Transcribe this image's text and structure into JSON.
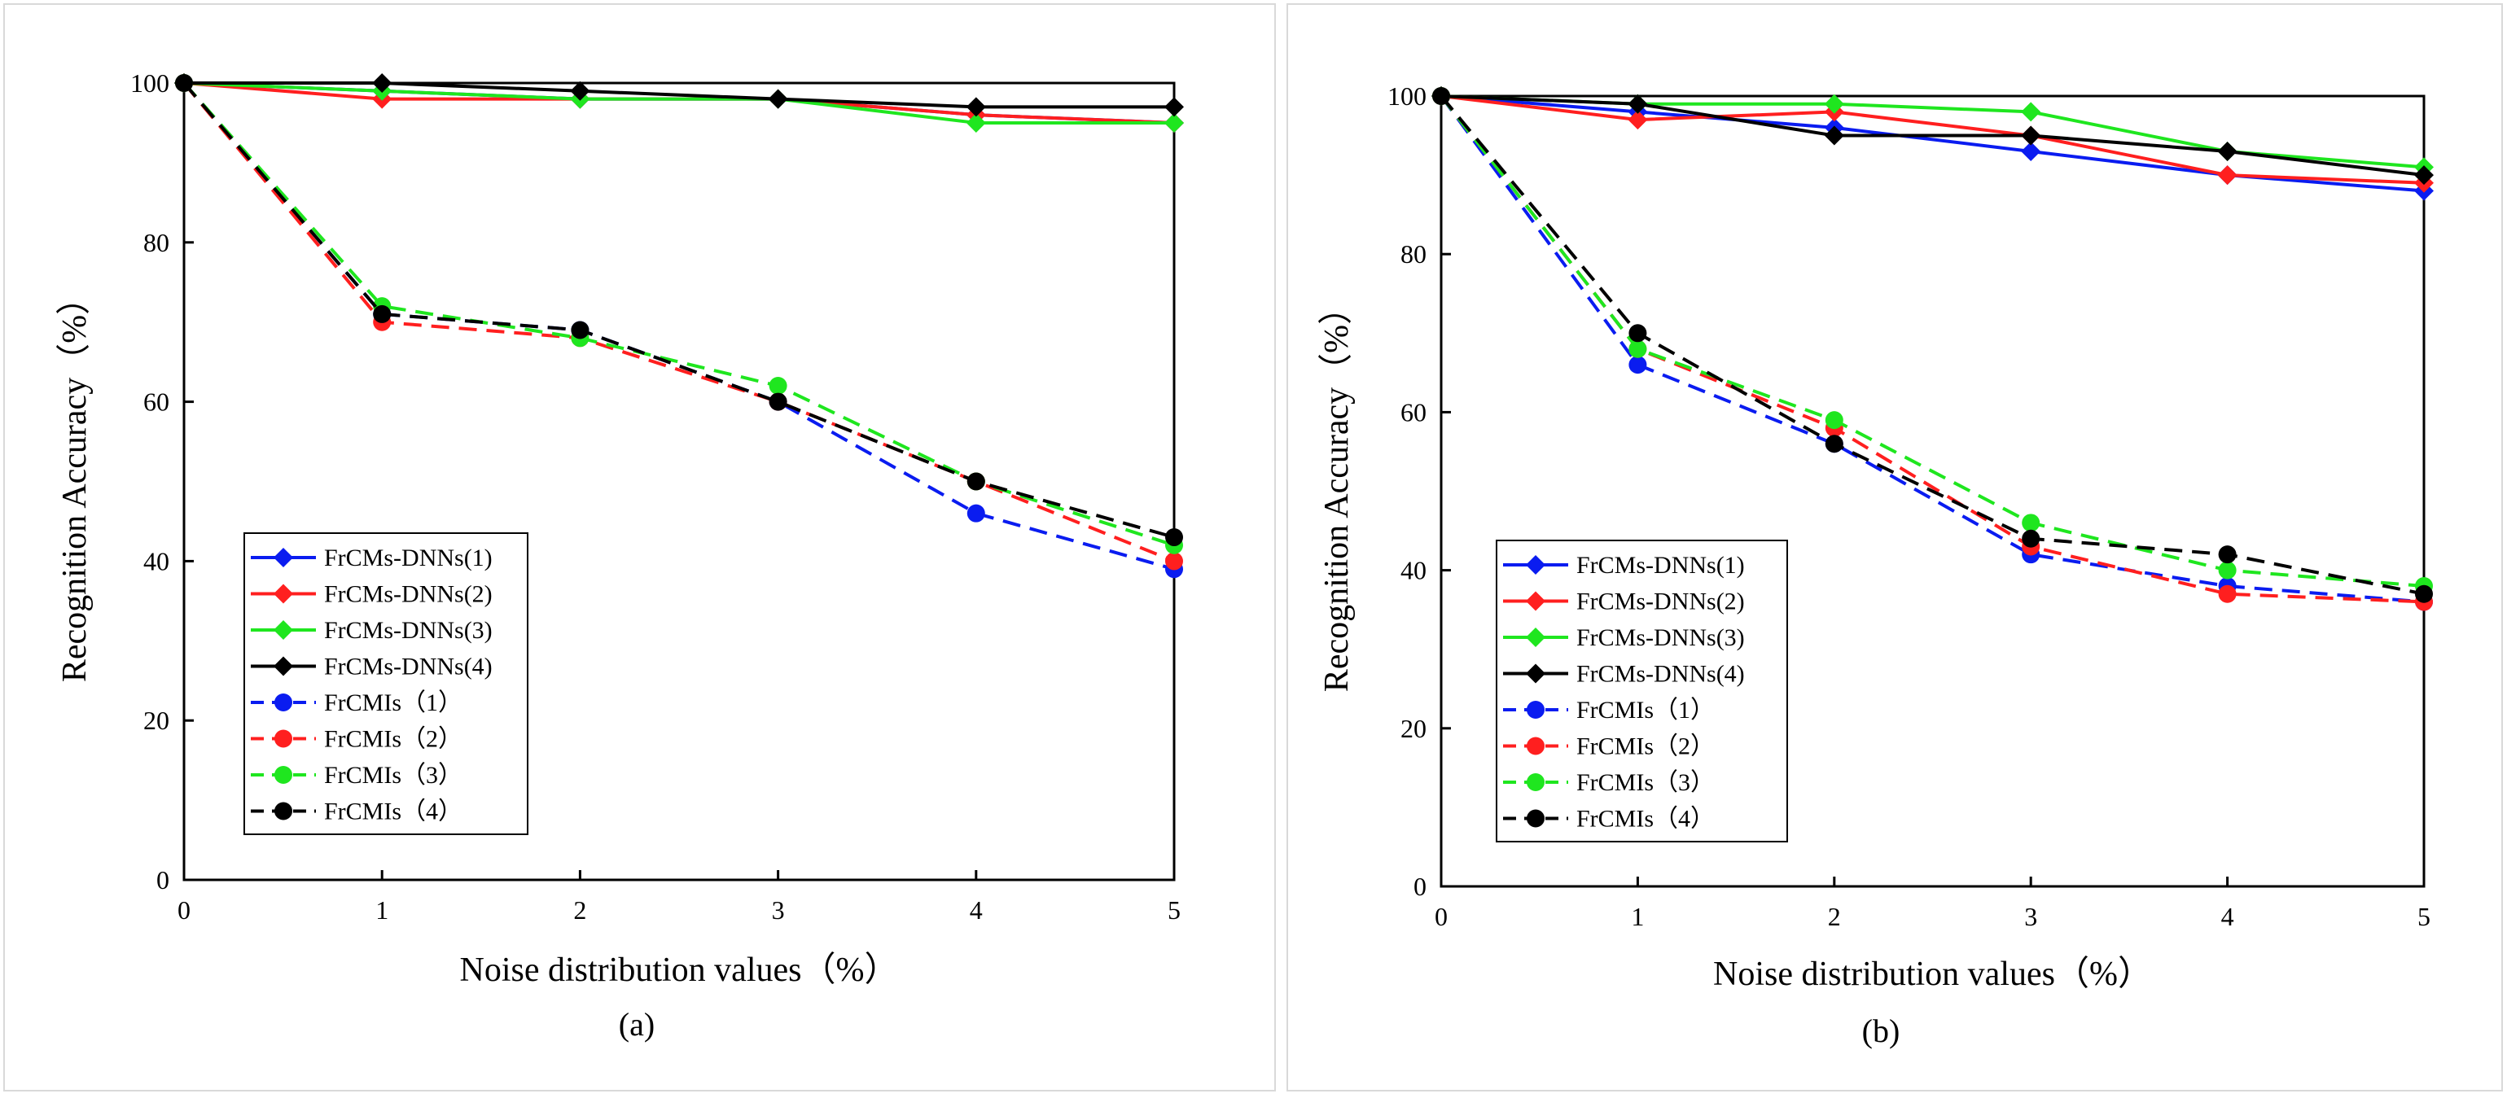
{
  "chart_data": [
    {
      "type": "line",
      "panel_label": "(a)",
      "title": "",
      "xlabel": "Noise distribution values（%）",
      "ylabel": "Recognition Accuracy（%）",
      "xlim": [
        0,
        5
      ],
      "ylim": [
        0,
        100
      ],
      "x_ticks": [
        "0",
        "1",
        "2",
        "3",
        "4",
        "5"
      ],
      "y_ticks": [
        "0",
        "20",
        "40",
        "60",
        "80",
        "100"
      ],
      "legend_position": "bottom-left",
      "x": [
        0,
        1,
        2,
        3,
        4,
        5
      ],
      "series": [
        {
          "name": "FrCMs-DNNs(1)",
          "values": [
            100,
            99,
            98,
            98,
            96,
            95
          ],
          "color": "#0a1cf0",
          "dash": "solid",
          "marker": "diamond"
        },
        {
          "name": "FrCMs-DNNs(2)",
          "values": [
            100,
            98,
            98,
            98,
            96,
            95
          ],
          "color": "#ff1f1f",
          "dash": "solid",
          "marker": "diamond"
        },
        {
          "name": "FrCMs-DNNs(3)",
          "values": [
            100,
            99,
            98,
            98,
            95,
            95
          ],
          "color": "#1fe61f",
          "dash": "solid",
          "marker": "diamond"
        },
        {
          "name": "FrCMs-DNNs(4)",
          "values": [
            100,
            100,
            99,
            98,
            97,
            97
          ],
          "color": "#000000",
          "dash": "solid",
          "marker": "diamond"
        },
        {
          "name": "FrCMIs（1）",
          "values": [
            100,
            71,
            69,
            60,
            46,
            39
          ],
          "color": "#0a1cf0",
          "dash": "dashed",
          "marker": "circle"
        },
        {
          "name": "FrCMIs（2）",
          "values": [
            100,
            70,
            68,
            60,
            50,
            40
          ],
          "color": "#ff1f1f",
          "dash": "dashed",
          "marker": "circle"
        },
        {
          "name": "FrCMIs（3）",
          "values": [
            100,
            72,
            68,
            62,
            50,
            42
          ],
          "color": "#1fe61f",
          "dash": "dashed",
          "marker": "circle"
        },
        {
          "name": "FrCMIs（4）",
          "values": [
            100,
            71,
            69,
            60,
            50,
            43
          ],
          "color": "#000000",
          "dash": "dashed",
          "marker": "circle"
        }
      ]
    },
    {
      "type": "line",
      "panel_label": "(b)",
      "title": "",
      "xlabel": "Noise distribution values（%）",
      "ylabel": "Recognition Accuracy（%）",
      "xlim": [
        0,
        5
      ],
      "ylim": [
        0,
        100
      ],
      "x_ticks": [
        "0",
        "1",
        "2",
        "3",
        "4",
        "5"
      ],
      "y_ticks": [
        "0",
        "20",
        "40",
        "60",
        "80",
        "100"
      ],
      "legend_position": "bottom-left",
      "x": [
        0,
        1,
        2,
        3,
        4,
        5
      ],
      "series": [
        {
          "name": "FrCMs-DNNs(1)",
          "values": [
            100,
            98,
            96,
            93,
            90,
            88
          ],
          "color": "#0a1cf0",
          "dash": "solid",
          "marker": "diamond"
        },
        {
          "name": "FrCMs-DNNs(2)",
          "values": [
            100,
            97,
            98,
            95,
            90,
            89
          ],
          "color": "#ff1f1f",
          "dash": "solid",
          "marker": "diamond"
        },
        {
          "name": "FrCMs-DNNs(3)",
          "values": [
            100,
            99,
            99,
            98,
            93,
            91
          ],
          "color": "#1fe61f",
          "dash": "solid",
          "marker": "diamond"
        },
        {
          "name": "FrCMs-DNNs(4)",
          "values": [
            100,
            99,
            95,
            95,
            93,
            90
          ],
          "color": "#000000",
          "dash": "solid",
          "marker": "diamond"
        },
        {
          "name": "FrCMIs（1）",
          "values": [
            100,
            66,
            56,
            42,
            38,
            36
          ],
          "color": "#0a1cf0",
          "dash": "dashed",
          "marker": "circle"
        },
        {
          "name": "FrCMIs（2）",
          "values": [
            100,
            68,
            58,
            43,
            37,
            36
          ],
          "color": "#ff1f1f",
          "dash": "dashed",
          "marker": "circle"
        },
        {
          "name": "FrCMIs（3）",
          "values": [
            100,
            68,
            59,
            46,
            40,
            38
          ],
          "color": "#1fe61f",
          "dash": "dashed",
          "marker": "circle"
        },
        {
          "name": "FrCMIs（4）",
          "values": [
            100,
            70,
            56,
            44,
            42,
            37
          ],
          "color": "#000000",
          "dash": "dashed",
          "marker": "circle"
        }
      ]
    }
  ]
}
